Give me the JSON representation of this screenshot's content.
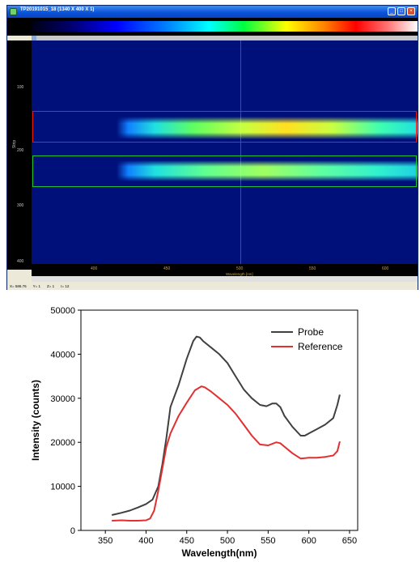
{
  "window": {
    "title": "TP20191015_18 (1340 X 400 X 1)",
    "y_axis_label": "Strip",
    "y_ticks": [
      "100",
      "200",
      "300",
      "400"
    ],
    "x_ticks": [
      "400",
      "450",
      "500",
      "550",
      "600"
    ],
    "x_axis_label": "Wavelength [nm]",
    "status": [
      "X= 586.76",
      "Y= 1",
      "Z= 1",
      "I= 12"
    ],
    "roi_colors": {
      "probe": "#e01818",
      "reference": "#20c040"
    }
  },
  "chart_data": {
    "type": "line",
    "xlabel": "Wavelength(nm)",
    "ylabel": "Intensity (counts)",
    "xlim": [
      320,
      660
    ],
    "ylim": [
      0,
      50000
    ],
    "x_ticks": [
      350,
      400,
      450,
      500,
      550,
      600,
      650
    ],
    "y_ticks": [
      0,
      10000,
      20000,
      30000,
      40000,
      50000
    ],
    "legend_position": "top-right",
    "series": [
      {
        "name": "Probe",
        "color": "#404040",
        "x": [
          358,
          370,
          380,
          390,
          400,
          408,
          415,
          420,
          425,
          430,
          440,
          450,
          458,
          462,
          466,
          470,
          480,
          490,
          500,
          510,
          520,
          530,
          540,
          548,
          555,
          560,
          565,
          570,
          580,
          590,
          595,
          600,
          610,
          620,
          630,
          635,
          638
        ],
        "y": [
          3500,
          4000,
          4500,
          5200,
          6000,
          7000,
          10000,
          15000,
          21000,
          28000,
          33000,
          39000,
          43000,
          44000,
          43800,
          43000,
          41500,
          40000,
          38000,
          35000,
          32000,
          30000,
          28500,
          28200,
          28800,
          28800,
          28000,
          26000,
          23500,
          21500,
          21500,
          22000,
          23000,
          24000,
          25500,
          28500,
          30800
        ]
      },
      {
        "name": "Reference",
        "color": "#e03030",
        "x": [
          358,
          370,
          380,
          390,
          400,
          405,
          410,
          415,
          420,
          425,
          430,
          440,
          450,
          460,
          468,
          472,
          480,
          490,
          500,
          510,
          520,
          530,
          540,
          550,
          560,
          565,
          570,
          580,
          590,
          600,
          610,
          620,
          630,
          635,
          638
        ],
        "y": [
          2200,
          2300,
          2200,
          2200,
          2300,
          2700,
          4500,
          9000,
          14000,
          19000,
          22000,
          26000,
          29000,
          31800,
          32700,
          32500,
          31500,
          30000,
          28500,
          26500,
          24000,
          21500,
          19500,
          19300,
          20000,
          19800,
          19000,
          17500,
          16300,
          16500,
          16500,
          16700,
          17000,
          18000,
          20200
        ]
      }
    ]
  }
}
